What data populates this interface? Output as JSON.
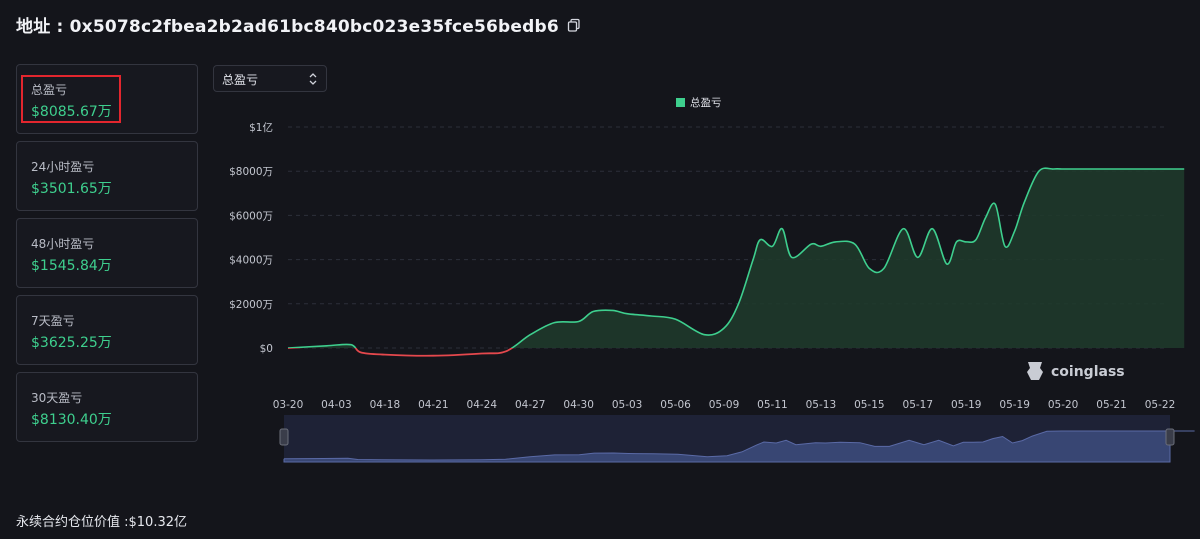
{
  "header": {
    "title": "地址 : 0x5078c2fbea2b2ad61bc840bc023e35fce56bedb6"
  },
  "stats": [
    {
      "label": "总盈亏",
      "value": "$8085.67万"
    },
    {
      "label": "24小时盈亏",
      "value": "$3501.65万"
    },
    {
      "label": "48小时盈亏",
      "value": "$1545.84万"
    },
    {
      "label": "7天盈亏",
      "value": "$3625.25万"
    },
    {
      "label": "30天盈亏",
      "value": "$8130.40万"
    }
  ],
  "selector": {
    "value": "总盈亏"
  },
  "footer": {
    "text": "永续合约仓位价值 :$10.32亿"
  },
  "watermark": "coinglass",
  "colors": {
    "positive": "#3ecf8e",
    "negative": "#e5484d",
    "background": "#14151b",
    "navigator": "#3b4a7a"
  },
  "chart_data": {
    "type": "area",
    "legend": {
      "label": "总盈亏",
      "position": "top-center"
    },
    "grid": true,
    "ylim": [
      0,
      10000
    ],
    "y_ticks": [
      {
        "value": 10000,
        "label": "$1亿"
      },
      {
        "value": 8000,
        "label": "$8000万"
      },
      {
        "value": 6000,
        "label": "$6000万"
      },
      {
        "value": 4000,
        "label": "$4000万"
      },
      {
        "value": 2000,
        "label": "$2000万"
      },
      {
        "value": 0,
        "label": "$0"
      }
    ],
    "x_ticks": [
      "03-20",
      "04-03",
      "04-18",
      "04-21",
      "04-24",
      "04-27",
      "04-30",
      "05-03",
      "05-06",
      "05-09",
      "05-11",
      "05-13",
      "05-15",
      "05-17",
      "05-19",
      "05-19",
      "05-20",
      "05-21",
      "05-22"
    ],
    "series": [
      {
        "name": "总盈亏",
        "x": [
          0,
          0.8,
          1.3,
          1.5,
          2,
          3,
          4,
          4.5,
          5,
          5.5,
          6,
          6.3,
          6.7,
          7,
          7.5,
          8,
          8.6,
          9,
          9.3,
          9.6,
          9.75,
          10,
          10.2,
          10.4,
          10.8,
          11,
          11.3,
          11.7,
          12,
          12.3,
          12.7,
          13,
          13.3,
          13.6,
          13.8,
          14,
          14.2,
          14.4,
          14.6,
          14.8,
          15,
          15.2,
          15.5,
          15.8,
          16,
          16.2,
          16.4,
          16.6,
          16.8,
          17,
          17.2,
          17.5,
          18.5
        ],
        "values": [
          0,
          100,
          150,
          -200,
          -300,
          -350,
          -250,
          -150,
          600,
          1150,
          1200,
          1650,
          1700,
          1550,
          1450,
          1300,
          600,
          900,
          2000,
          4000,
          4900,
          4600,
          5400,
          4100,
          4700,
          4600,
          4800,
          4700,
          3600,
          3600,
          5400,
          4100,
          5400,
          3800,
          4800,
          4800,
          4900,
          5900,
          6500,
          4600,
          5300,
          6600,
          8000,
          8100,
          8100,
          8100,
          8100,
          8100,
          8100,
          8100,
          8100,
          8100,
          8100
        ]
      }
    ]
  }
}
